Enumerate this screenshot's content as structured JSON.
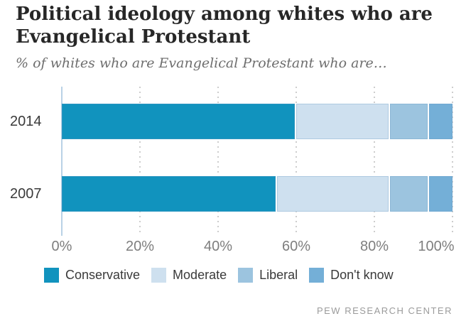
{
  "header": {
    "title_lines": [
      "Political ideology among whites who are",
      "Evangelical Protestant"
    ],
    "subtitle": "% of whites who are Evangelical Protestant who are…"
  },
  "chart_data": {
    "type": "bar",
    "orientation": "horizontal",
    "stacked": true,
    "title": "Political ideology among whites who are Evangelical Protestant",
    "subtitle": "% of whites who are Evangelical Protestant who are…",
    "categories": [
      "2014",
      "2007"
    ],
    "series": [
      {
        "name": "Conservative",
        "color": "#1193BE",
        "values": [
          60,
          55
        ]
      },
      {
        "name": "Moderate",
        "color": "#CEE0EF",
        "values": [
          24,
          29
        ]
      },
      {
        "name": "Liberal",
        "color": "#9CC4DF",
        "values": [
          10,
          10
        ]
      },
      {
        "name": "Don't know",
        "color": "#74AFD7",
        "values": [
          6,
          6
        ]
      }
    ],
    "x_ticks": [
      "0%",
      "20%",
      "40%",
      "60%",
      "80%",
      "100%"
    ],
    "xlim": [
      0,
      100
    ],
    "grid": "dotted vertical gridlines every 20%",
    "legend_position": "bottom"
  },
  "footer": {
    "credit": "PEW RESEARCH CENTER"
  },
  "colors": {
    "axis_line": "#b9d2e6",
    "gridline": "#cdcdcd",
    "title_text": "#272727",
    "subtitle_text": "#6e6e6e",
    "tick_text": "#7e7e7e",
    "credit_text": "#9b9b9b"
  }
}
